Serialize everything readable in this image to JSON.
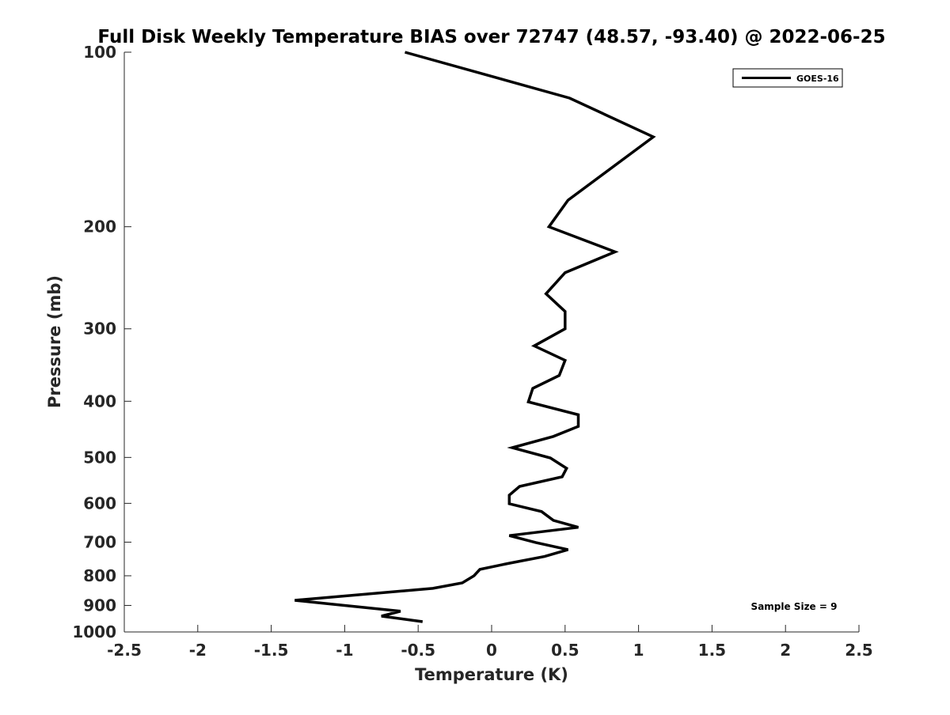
{
  "chart_data": {
    "type": "line",
    "title": "Full Disk Weekly Temperature BIAS over 72747 (48.57, -93.40) @ 2022-06-25",
    "xlabel": "Temperature (K)",
    "ylabel": "Pressure (mb)",
    "xlim": [
      -2.5,
      2.5
    ],
    "ylim": [
      100,
      1000
    ],
    "yscale": "log",
    "yreversed": true,
    "grid": false,
    "x_ticks": [
      "-2.5",
      "-2",
      "-1.5",
      "-1",
      "-0.5",
      "0",
      "0.5",
      "1",
      "1.5",
      "2",
      "2.5"
    ],
    "x_tick_values": [
      -2.5,
      -2,
      -1.5,
      -1,
      -0.5,
      0,
      0.5,
      1,
      1.5,
      2,
      2.5
    ],
    "y_ticks": [
      "100",
      "200",
      "300",
      "400",
      "500",
      "600",
      "700",
      "800",
      "900",
      "1000"
    ],
    "y_tick_values": [
      100,
      200,
      300,
      400,
      500,
      600,
      700,
      800,
      900,
      1000
    ],
    "legend": {
      "placement": "top-right",
      "entries": [
        "GOES-16"
      ]
    },
    "annotation": "Sample Size = 9",
    "series": [
      {
        "name": "GOES-16",
        "color": "#000000",
        "points": [
          [
            -0.59,
            100
          ],
          [
            0.53,
            120
          ],
          [
            1.1,
            140
          ],
          [
            0.52,
            180
          ],
          [
            0.39,
            200
          ],
          [
            0.84,
            221
          ],
          [
            0.5,
            240
          ],
          [
            0.37,
            261
          ],
          [
            0.5,
            280
          ],
          [
            0.5,
            300
          ],
          [
            0.29,
            321
          ],
          [
            0.5,
            340
          ],
          [
            0.46,
            361
          ],
          [
            0.28,
            380
          ],
          [
            0.25,
            401
          ],
          [
            0.59,
            422
          ],
          [
            0.59,
            442
          ],
          [
            0.42,
            460
          ],
          [
            0.14,
            481
          ],
          [
            0.4,
            501
          ],
          [
            0.51,
            522
          ],
          [
            0.48,
            540
          ],
          [
            0.19,
            561
          ],
          [
            0.12,
            581
          ],
          [
            0.12,
            601
          ],
          [
            0.34,
            620
          ],
          [
            0.42,
            642
          ],
          [
            0.59,
            660
          ],
          [
            0.12,
            682
          ],
          [
            0.3,
            701
          ],
          [
            0.52,
            721
          ],
          [
            0.36,
            741
          ],
          [
            0.12,
            761
          ],
          [
            -0.08,
            780
          ],
          [
            -0.12,
            800
          ],
          [
            -0.2,
            823
          ],
          [
            -0.4,
            841
          ],
          [
            -1.34,
            882
          ],
          [
            -0.62,
            921
          ],
          [
            -0.75,
            939
          ],
          [
            -0.47,
            960
          ]
        ]
      }
    ]
  }
}
